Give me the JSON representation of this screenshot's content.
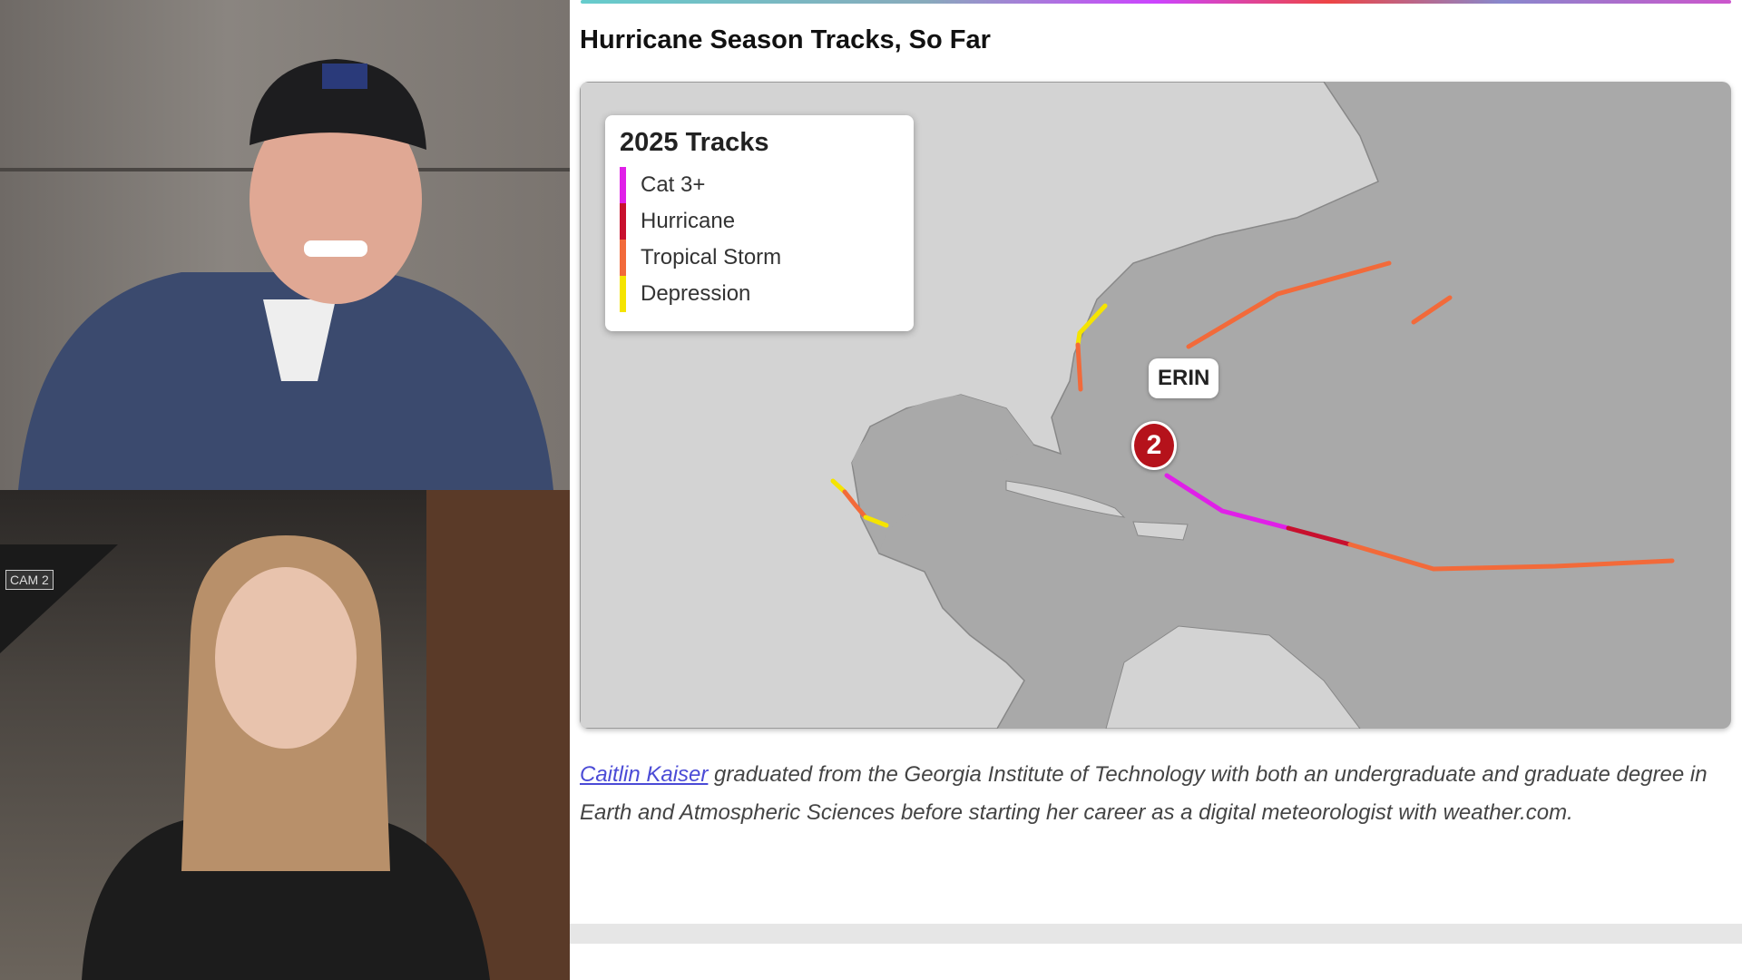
{
  "video_feeds": {
    "top": {
      "name": "presenter-male"
    },
    "bottom": {
      "name": "presenter-female",
      "camera_label": "CAM 2"
    }
  },
  "article": {
    "title": "Hurricane Season Tracks, So Far",
    "map": {
      "legend": {
        "title": "2025 Tracks",
        "items": [
          {
            "label": "Cat 3+",
            "color": "#e020e8"
          },
          {
            "label": "Hurricane",
            "color": "#c8102e"
          },
          {
            "label": "Tropical Storm",
            "color": "#f26a3a"
          },
          {
            "label": "Depression",
            "color": "#f5e400"
          }
        ]
      },
      "storm_label": "ERIN",
      "storm_category": "2",
      "colors": {
        "land": "#d3d3d3",
        "ocean": "#a9a9a9",
        "storm_icon": "#b5121b"
      }
    },
    "bio": {
      "author_link": "Caitlin Kaiser",
      "text": " graduated from the Georgia Institute of Technology with both an undergraduate and graduate degree in Earth and Atmospheric Sciences before starting her career as a digital meteorologist with weather.com."
    }
  }
}
